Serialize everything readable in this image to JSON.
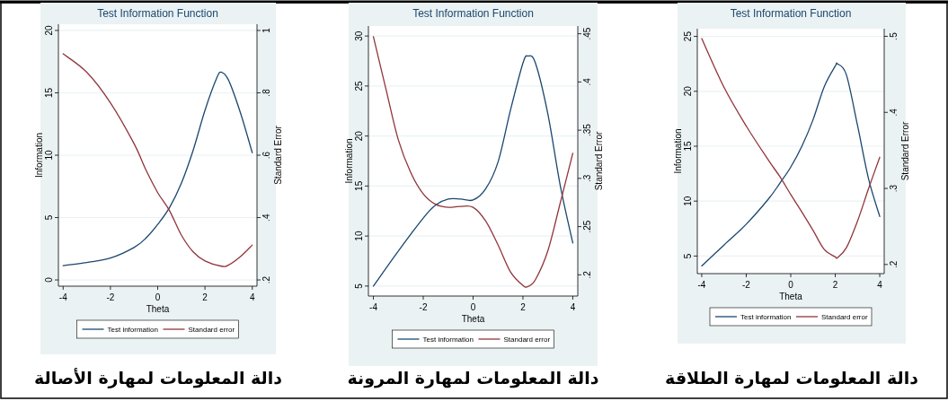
{
  "chart_data": [
    {
      "type": "line",
      "title": "Test Information Function",
      "xlabel": "Theta",
      "ylabel": "Information",
      "y2label": "Standard Error",
      "annotations": [
        "دالة المعلومات لمهارة الأصالة"
      ],
      "xlim": [
        -4.2,
        4.2
      ],
      "xticks": [
        -4,
        -2,
        0,
        2,
        4
      ],
      "ylim": [
        -0.5,
        20.5
      ],
      "yticks": [
        0,
        5,
        10,
        15,
        20
      ],
      "y2lim": [
        0.18,
        1.02
      ],
      "y2ticks": [
        {
          "value": 0.2,
          "label": ".2"
        },
        {
          "value": 0.4,
          "label": ".4"
        },
        {
          "value": 0.6,
          "label": ".6"
        },
        {
          "value": 0.8,
          "label": ".8"
        },
        {
          "value": 1,
          "label": "1"
        }
      ],
      "grid": "y",
      "legend": "bottom",
      "series": [
        {
          "name": "Test information",
          "color": "#1a476f",
          "x": [
            -4,
            -3,
            -2,
            -1,
            -0.5,
            0,
            0.5,
            1,
            1.5,
            2,
            2.5,
            2.7,
            3,
            3.5,
            4
          ],
          "values": [
            1.15,
            1.4,
            1.75,
            2.6,
            3.35,
            4.45,
            5.8,
            7.75,
            10.4,
            13.6,
            16.2,
            16.65,
            16.0,
            13.4,
            10.2
          ]
        },
        {
          "name": "Standard error",
          "color": "#90353b",
          "axis": "y2",
          "x": [
            -4,
            -3,
            -2,
            -1,
            -0.5,
            0,
            0.5,
            1,
            1.5,
            2,
            2.7,
            3,
            3.5,
            4
          ],
          "values": [
            0.925,
            0.866,
            0.768,
            0.637,
            0.553,
            0.48,
            0.422,
            0.344,
            0.29,
            0.261,
            0.244,
            0.248,
            0.275,
            0.312
          ]
        }
      ]
    },
    {
      "type": "line",
      "title": "Test Information Function",
      "xlabel": "Theta",
      "ylabel": "Information",
      "y2label": "Standard Error",
      "annotations": [
        "دالة المعلومات لمهارة المرونة"
      ],
      "xlim": [
        -4.2,
        4.2
      ],
      "xticks": [
        -4,
        -2,
        0,
        2,
        4
      ],
      "ylim": [
        4,
        31
      ],
      "yticks": [
        5,
        10,
        15,
        20,
        25,
        30
      ],
      "y2lim": [
        0.178,
        0.458
      ],
      "y2ticks": [
        {
          "value": 0.2,
          "label": ".2"
        },
        {
          "value": 0.25,
          "label": ".25"
        },
        {
          "value": 0.3,
          "label": ".3"
        },
        {
          "value": 0.35,
          "label": ".35"
        },
        {
          "value": 0.4,
          "label": ".4"
        },
        {
          "value": 0.45,
          "label": ".45"
        }
      ],
      "grid": "y",
      "legend": "bottom",
      "series": [
        {
          "name": "Test information",
          "color": "#1a476f",
          "x": [
            -4,
            -3,
            -2,
            -1.5,
            -1,
            -0.5,
            0,
            0.5,
            1,
            1.5,
            2,
            2.2,
            2.5,
            3,
            3.5,
            4
          ],
          "values": [
            5,
            8.5,
            11.8,
            13.1,
            13.7,
            13.7,
            13.6,
            14.7,
            17.4,
            22.6,
            27.3,
            28.0,
            27.3,
            22.2,
            15.0,
            9.3
          ]
        },
        {
          "name": "Standard error",
          "color": "#90353b",
          "axis": "y2",
          "x": [
            -4,
            -3.5,
            -3,
            -2.5,
            -2,
            -1.5,
            -1,
            -0.5,
            0,
            0.5,
            1,
            1.5,
            2,
            2.2,
            2.5,
            3,
            3.5,
            4
          ],
          "values": [
            0.447,
            0.393,
            0.34,
            0.306,
            0.284,
            0.273,
            0.27,
            0.271,
            0.27,
            0.256,
            0.231,
            0.203,
            0.189,
            0.188,
            0.195,
            0.225,
            0.275,
            0.326
          ]
        }
      ]
    },
    {
      "type": "line",
      "title": "Test Information Function",
      "xlabel": "Theta",
      "ylabel": "Information",
      "y2label": "Standard Error",
      "annotations": [
        "دالة المعلومات لمهارة الطلاقة"
      ],
      "xlim": [
        -4.2,
        4.2
      ],
      "xticks": [
        -4,
        -2,
        0,
        2,
        4
      ],
      "ylim": [
        3.4,
        25.7
      ],
      "yticks": [
        5,
        10,
        15,
        20,
        25
      ],
      "y2lim": [
        0.188,
        0.51
      ],
      "y2ticks": [
        {
          "value": 0.2,
          "label": ".2"
        },
        {
          "value": 0.3,
          "label": ".3"
        },
        {
          "value": 0.4,
          "label": ".4"
        },
        {
          "value": 0.5,
          "label": ".5"
        }
      ],
      "grid": "y",
      "legend": "bottom",
      "series": [
        {
          "name": "Test information",
          "color": "#1a476f",
          "x": [
            -4,
            -3,
            -2,
            -1,
            -0.5,
            0,
            0.5,
            1,
            1.5,
            2,
            2.1,
            2.5,
            3,
            3.5,
            4
          ],
          "values": [
            4.1,
            6.0,
            7.9,
            10.2,
            11.6,
            13.1,
            15.0,
            17.4,
            20.4,
            22.3,
            22.5,
            21.5,
            16.9,
            12.0,
            8.6
          ]
        },
        {
          "name": "Standard error",
          "color": "#90353b",
          "axis": "y2",
          "x": [
            -4,
            -3,
            -2,
            -1,
            -0.5,
            0,
            0.5,
            1,
            1.5,
            2,
            2.1,
            2.5,
            3,
            3.5,
            4
          ],
          "values": [
            0.497,
            0.433,
            0.382,
            0.337,
            0.316,
            0.292,
            0.269,
            0.245,
            0.22,
            0.21,
            0.209,
            0.222,
            0.257,
            0.3,
            0.341
          ]
        }
      ]
    }
  ]
}
